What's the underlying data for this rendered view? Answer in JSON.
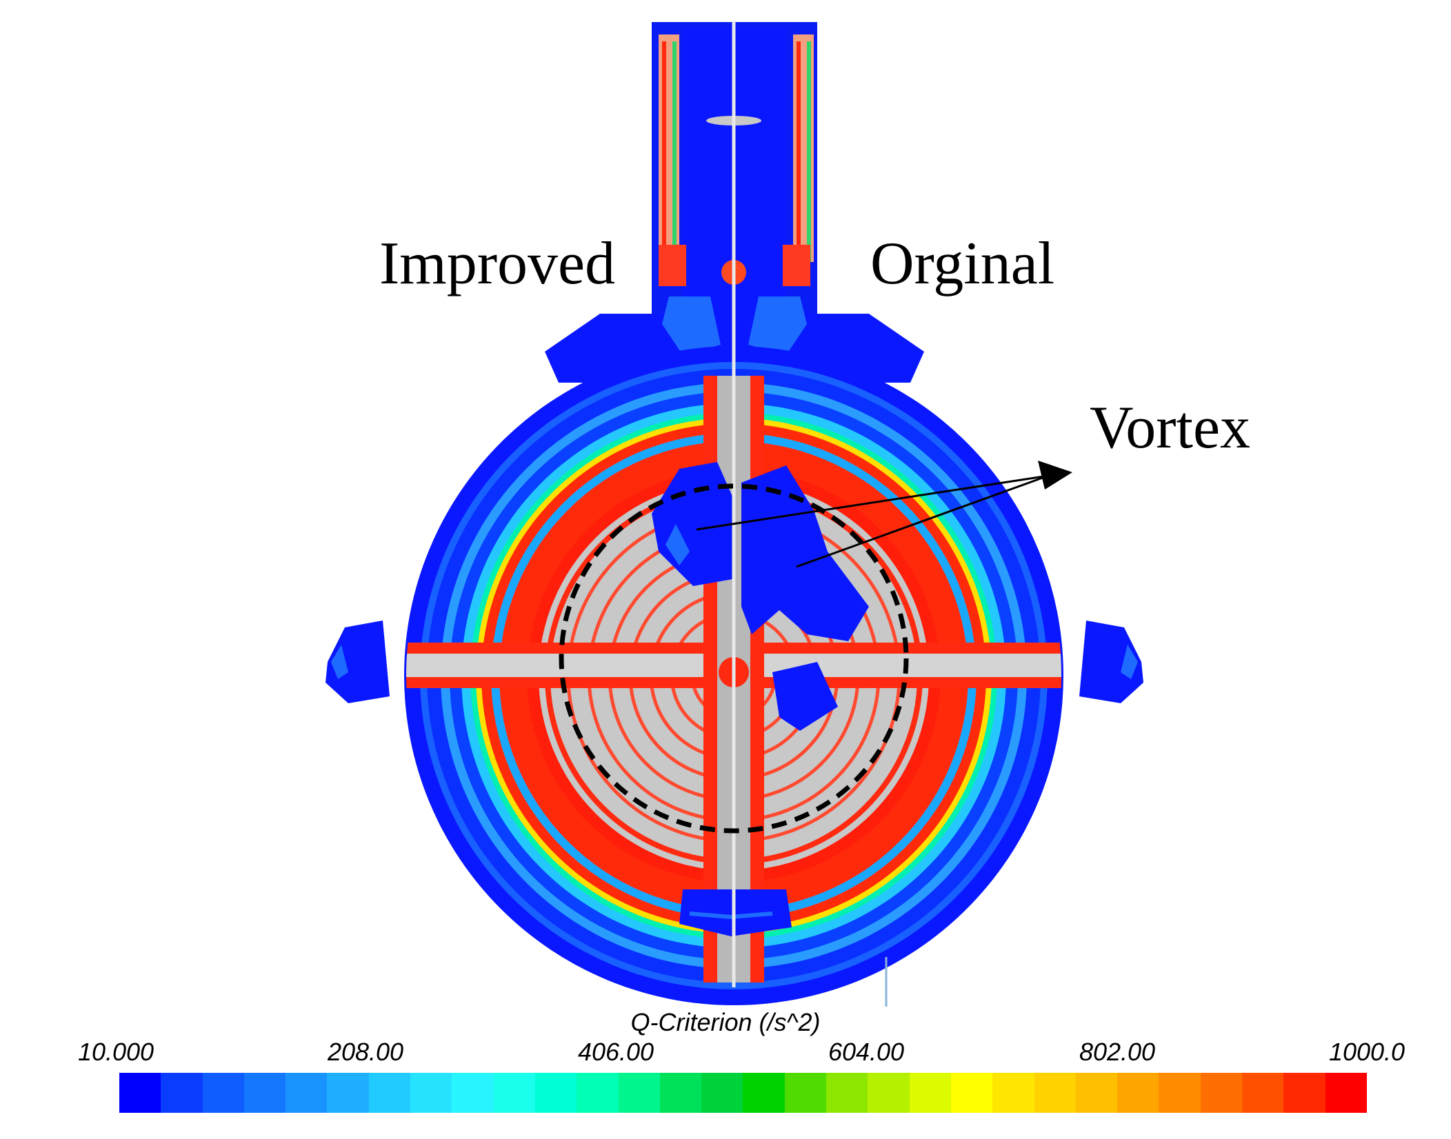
{
  "labels": {
    "improved": "Improved",
    "original": "Orginal",
    "vortex": "Vortex"
  },
  "colorbar": {
    "title": "Q-Criterion (/s^2)",
    "ticks": [
      "10.000",
      "208.00",
      "406.00",
      "604.00",
      "802.00",
      "1000.0"
    ],
    "colors": [
      "#0000ff",
      "#0a3cff",
      "#0f5dff",
      "#1478ff",
      "#1994ff",
      "#1eb0ff",
      "#22cbff",
      "#26e3ff",
      "#28f5ff",
      "#1affec",
      "#00ffd6",
      "#00ffb4",
      "#00f58c",
      "#00e15a",
      "#00d23c",
      "#00d200",
      "#50dc00",
      "#8ce600",
      "#b4f000",
      "#dcfa00",
      "#ffff00",
      "#ffe600",
      "#ffd200",
      "#ffbe00",
      "#ffa500",
      "#ff8c00",
      "#ff6e00",
      "#ff5000",
      "#ff2800",
      "#ff0000"
    ]
  }
}
